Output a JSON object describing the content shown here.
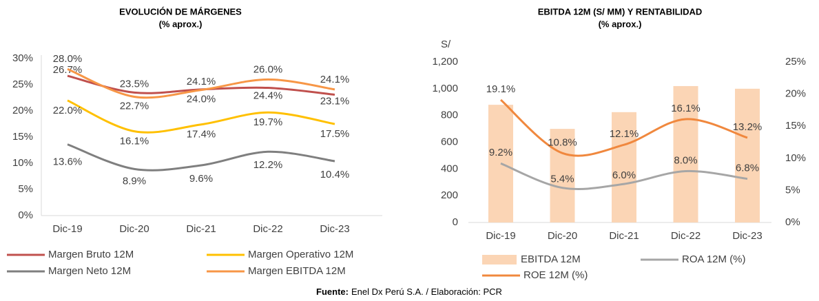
{
  "charts": [
    {
      "type": "line",
      "title": "EVOLUCIÓN DE MÁRGENES",
      "subtitle": "(% aprox.)",
      "categories": [
        "Dic-19",
        "Dic-20",
        "Dic-21",
        "Dic-22",
        "Dic-23"
      ],
      "ylim": [
        0,
        30
      ],
      "yticks": [
        {
          "value": 0,
          "label": "0%"
        },
        {
          "value": 5,
          "label": "5%"
        },
        {
          "value": 10,
          "label": "10%"
        },
        {
          "value": 15,
          "label": "15%"
        },
        {
          "value": 20,
          "label": "20%"
        },
        {
          "value": 25,
          "label": "25%"
        },
        {
          "value": 30,
          "label": "30%"
        }
      ],
      "series": [
        {
          "name": "Margen Bruto 12M",
          "color": "#c0504d",
          "values": [
            26.7,
            23.5,
            24.1,
            24.4,
            23.1
          ],
          "value_labels": [
            "26.7%",
            "23.5%",
            "24.1%",
            "24.4%",
            "23.1%"
          ]
        },
        {
          "name": "Margen Operativo 12M",
          "color": "#ffc000",
          "values": [
            22.0,
            16.1,
            17.4,
            19.7,
            17.5
          ],
          "value_labels": [
            "22.0%",
            "16.1%",
            "17.4%",
            "19.7%",
            "17.5%"
          ]
        },
        {
          "name": "Margen Neto 12M",
          "color": "#7f7f7f",
          "values": [
            13.6,
            8.9,
            9.6,
            12.2,
            10.4
          ],
          "value_labels": [
            "13.6%",
            "8.9%",
            "9.6%",
            "12.2%",
            "10.4%"
          ]
        },
        {
          "name": "Margen EBITDA 12M",
          "color": "#f79646",
          "values": [
            28.0,
            22.7,
            24.0,
            26.0,
            24.1
          ],
          "value_labels": [
            "28.0%",
            "22.7%",
            "24.0%",
            "26.0%",
            "24.1%"
          ]
        }
      ]
    },
    {
      "type": "bar",
      "title": "EBITDA 12M (S/ MM) Y RENTABILIDAD",
      "subtitle": "(% aprox.)",
      "y_label": "S/",
      "categories": [
        "Dic-19",
        "Dic-20",
        "Dic-21",
        "Dic-22",
        "Dic-23"
      ],
      "ylim": [
        0,
        1200
      ],
      "yticks": [
        0,
        200,
        400,
        600,
        800,
        {
          "value": 1000,
          "label": "1,000"
        },
        {
          "value": 1200,
          "label": "1,200"
        }
      ],
      "y2lim": [
        0,
        25
      ],
      "y2ticks": [
        {
          "value": 0,
          "label": "0%"
        },
        {
          "value": 5,
          "label": "5%"
        },
        {
          "value": 10,
          "label": "10%"
        },
        {
          "value": 15,
          "label": "15%"
        },
        {
          "value": 20,
          "label": "20%"
        },
        {
          "value": 25,
          "label": "25%"
        }
      ],
      "series": [
        {
          "name": "EBITDA 12M",
          "type": "bar",
          "color": "#fbd5b5",
          "values": [
            880,
            700,
            825,
            1020,
            1000
          ]
        },
        {
          "name": "ROA 12M (%)",
          "type": "line",
          "axis": "y2",
          "color": "#a6a6a6",
          "values": [
            9.2,
            5.4,
            6.0,
            8.0,
            6.8
          ],
          "value_labels": [
            "9.2%",
            "5.4%",
            "6.0%",
            "8.0%",
            "6.8%"
          ]
        },
        {
          "name": "ROE 12M (%)",
          "type": "line",
          "axis": "y2",
          "color": "#f0883e",
          "values": [
            19.1,
            10.8,
            12.1,
            16.1,
            13.2
          ],
          "value_labels": [
            "19.1%",
            "10.8%",
            "12.1%",
            "16.1%",
            "13.2%"
          ]
        }
      ]
    }
  ],
  "source": {
    "label": "Fuente:",
    "text": "Enel Dx Perú S.A. / Elaboración: PCR"
  }
}
